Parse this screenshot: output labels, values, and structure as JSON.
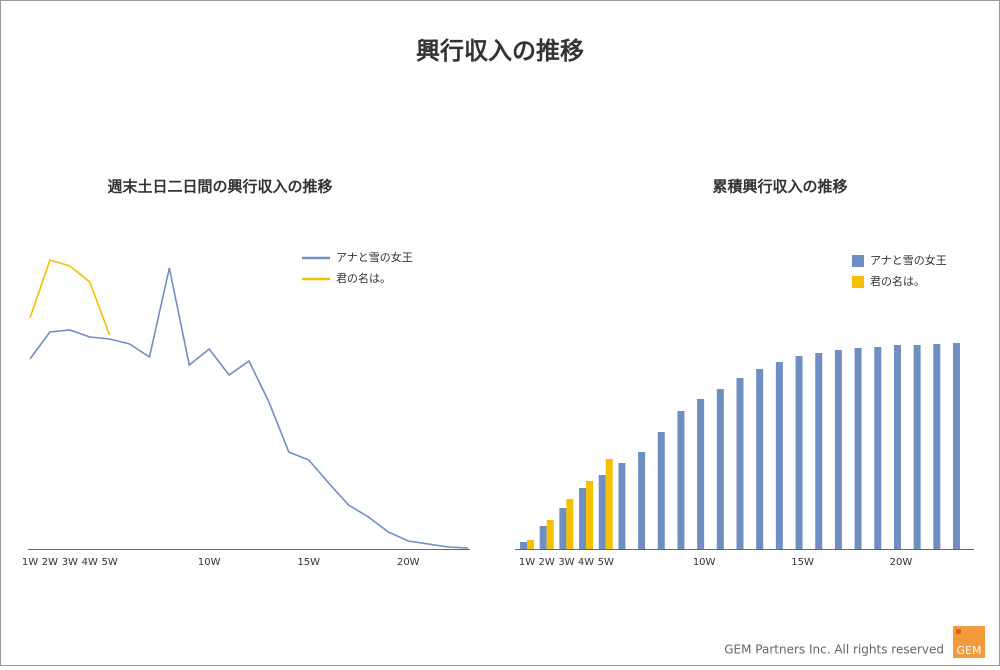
{
  "header": {
    "title": "興行収入の推移"
  },
  "footer": {
    "copyright": "GEM Partners Inc.  All rights reserved",
    "logo": "GEM"
  },
  "chart_data": [
    {
      "type": "line",
      "title": "週末土日二日間の興行収入の推移",
      "categories": [
        "1W",
        "2W",
        "3W",
        "4W",
        "5W",
        null,
        null,
        null,
        null,
        "10W",
        null,
        null,
        null,
        null,
        "15W",
        null,
        null,
        null,
        null,
        "20W",
        null,
        null,
        null
      ],
      "series": [
        {
          "name": "アナと雪の女王",
          "color": "#6f8fc3",
          "values": [
            190,
            217,
            219,
            212,
            210,
            205,
            192,
            281,
            184,
            200,
            174,
            188,
            147,
            97,
            89,
            66,
            44,
            32,
            17,
            8,
            5,
            2,
            1
          ]
        },
        {
          "name": "君の名は。",
          "color": "#f5c000",
          "values": [
            231,
            289,
            283,
            267,
            214,
            null,
            null,
            null,
            null,
            null,
            null,
            null,
            null,
            null,
            null,
            null,
            null,
            null,
            null,
            null,
            null,
            null,
            null
          ]
        }
      ],
      "ylim": [
        0,
        300
      ]
    },
    {
      "type": "bar",
      "title": "累積興行収入の推移",
      "categories": [
        "1W",
        "2W",
        "3W",
        "4W",
        "5W",
        null,
        null,
        null,
        null,
        "10W",
        null,
        null,
        null,
        null,
        "15W",
        null,
        null,
        null,
        null,
        "20W",
        null,
        null,
        null
      ],
      "series": [
        {
          "name": "アナと雪の女王",
          "color": "#6f8fc3",
          "values": [
            7,
            23,
            41,
            61,
            74,
            86,
            97,
            117,
            138,
            150,
            160,
            171,
            180,
            187,
            193,
            196,
            199,
            201,
            202,
            204,
            204,
            205,
            206
          ]
        },
        {
          "name": "君の名は。",
          "color": "#f5c000",
          "values": [
            9,
            29,
            50,
            68,
            90,
            null,
            null,
            null,
            null,
            null,
            null,
            null,
            null,
            null,
            null,
            null,
            null,
            null,
            null,
            null,
            null,
            null,
            null
          ]
        }
      ],
      "ylim": [
        0,
        300
      ]
    }
  ]
}
